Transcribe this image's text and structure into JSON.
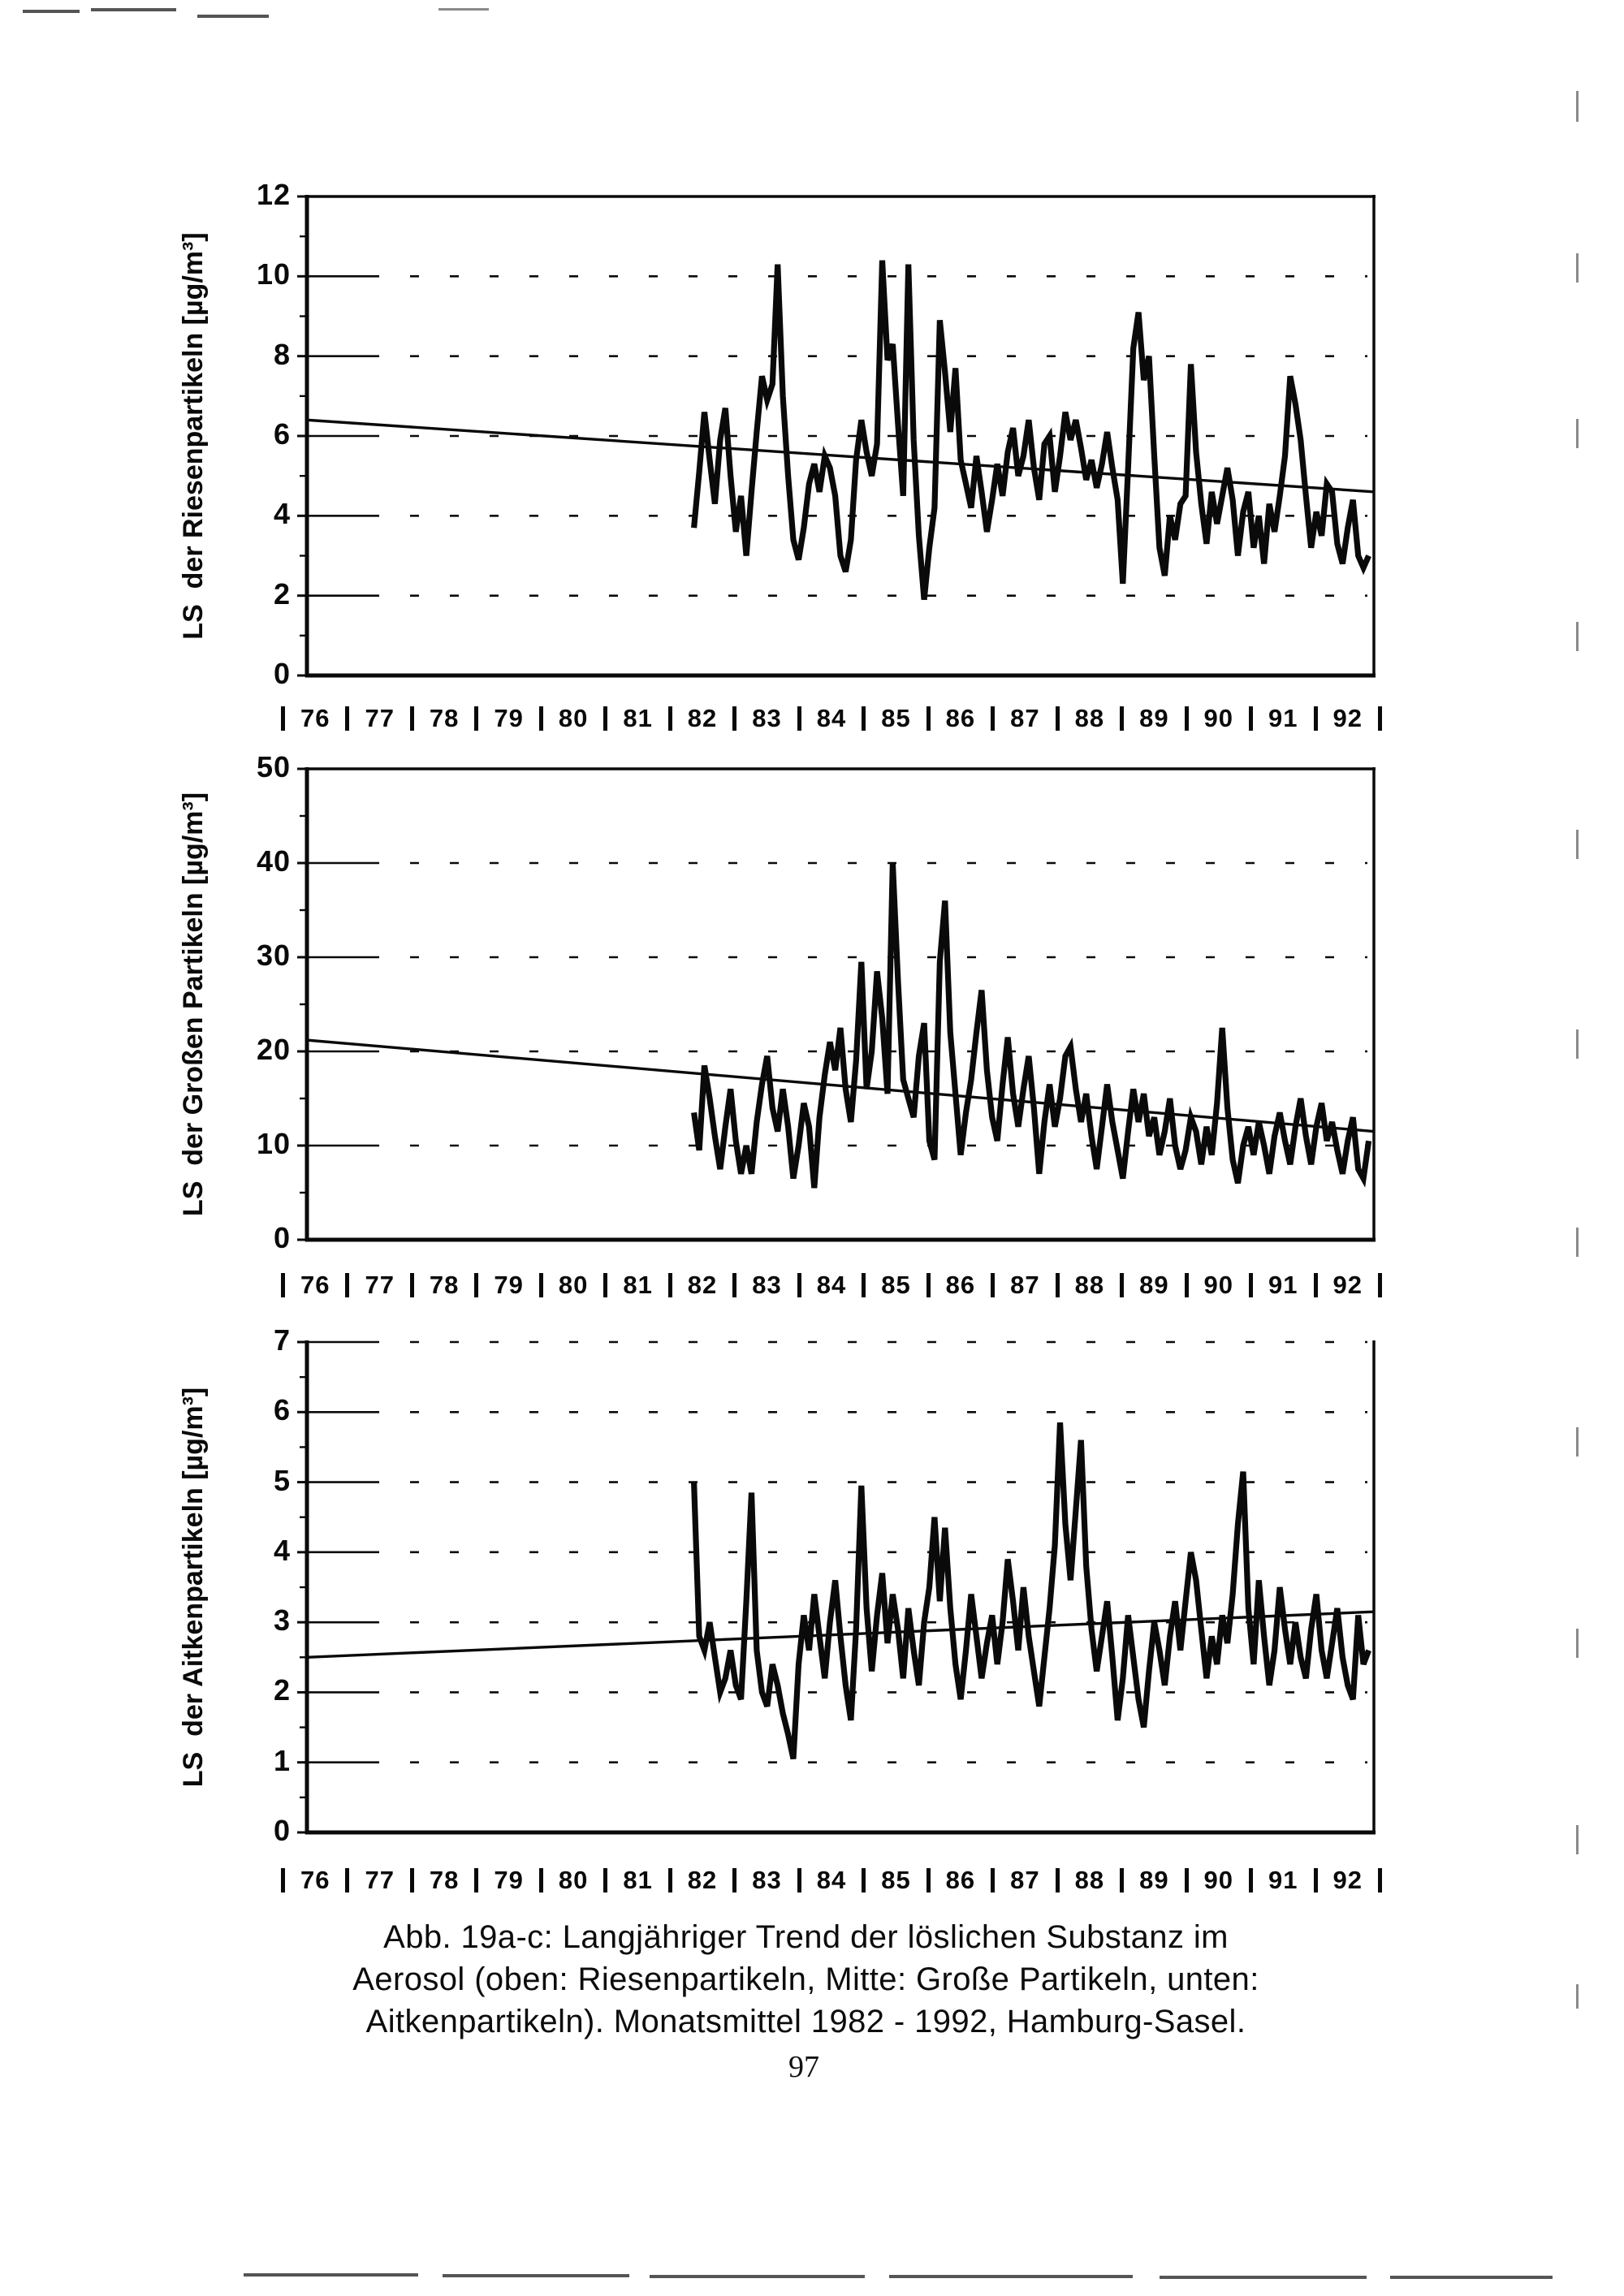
{
  "page": {
    "number": "97",
    "ink_color": "#0a0a0a",
    "background": "#ffffff"
  },
  "caption": {
    "line1": "Abb. 19a-c: Langjähriger Trend der löslichen Substanz im",
    "line2": "Aerosol (oben: Riesenpartikeln, Mitte: Große Partikeln, unten:",
    "line3": "Aitkenpartikeln). Monatsmittel 1982 - 1992, Hamburg-Sasel."
  },
  "x_axis_years": [
    "76",
    "77",
    "78",
    "79",
    "80",
    "81",
    "82",
    "83",
    "84",
    "85",
    "86",
    "87",
    "88",
    "89",
    "90",
    "91",
    "92"
  ],
  "chart_data": [
    {
      "type": "line",
      "position": "top",
      "ylabel": "LS  der Riesenpartikeln [µg/m³]",
      "ylim": [
        0,
        12
      ],
      "ytick_step": 2,
      "minor_tick_step": 1,
      "x_range": [
        1976,
        1993
      ],
      "grid": "dashed-horizontal",
      "has_top_border": true,
      "series": [
        {
          "name": "Monatsmittel",
          "start_year": 1982.1667,
          "step_years": 0.08333,
          "values": [
            3.7,
            5.1,
            6.6,
            5.4,
            4.3,
            5.9,
            6.7,
            5.0,
            3.6,
            4.5,
            3.0,
            4.6,
            6.1,
            7.5,
            6.9,
            7.3,
            10.3,
            7.0,
            5.0,
            3.4,
            2.9,
            3.7,
            4.8,
            5.3,
            4.6,
            5.5,
            5.2,
            4.5,
            3.0,
            2.6,
            3.4,
            5.4,
            6.4,
            5.6,
            5.0,
            5.8,
            10.4,
            7.9,
            8.3,
            6.3,
            4.5,
            10.3,
            5.9,
            3.5,
            1.9,
            3.2,
            4.2,
            8.9,
            7.6,
            6.1,
            7.7,
            5.4,
            4.8,
            4.2,
            5.5,
            4.6,
            3.6,
            4.4,
            5.3,
            4.5,
            5.6,
            6.2,
            5.0,
            5.5,
            6.4,
            5.2,
            4.4,
            5.8,
            6.0,
            4.6,
            5.5,
            6.6,
            5.9,
            6.4,
            5.7,
            4.9,
            5.4,
            4.7,
            5.3,
            6.1,
            5.2,
            4.4,
            2.3,
            5.2,
            8.2,
            9.1,
            7.4,
            8.0,
            5.5,
            3.2,
            2.5,
            4.0,
            3.4,
            4.3,
            4.5,
            7.8,
            5.6,
            4.3,
            3.3,
            4.6,
            3.8,
            4.5,
            5.2,
            4.4,
            3.0,
            4.1,
            4.6,
            3.2,
            4.0,
            2.8,
            4.3,
            3.6,
            4.5,
            5.5,
            7.5,
            6.8,
            5.9,
            4.5,
            3.2,
            4.1,
            3.5,
            4.8,
            4.6,
            3.3,
            2.8,
            3.7,
            4.4,
            3.0,
            2.7,
            3.0
          ]
        },
        {
          "name": "Trend",
          "x": [
            1976,
            1993
          ],
          "y": [
            6.4,
            4.6
          ]
        }
      ]
    },
    {
      "type": "line",
      "position": "middle",
      "ylabel": "LS  der Großen Partikeln [µg/m³]",
      "ylim": [
        0,
        50
      ],
      "ytick_step": 10,
      "minor_tick_step": 5,
      "x_range": [
        1976,
        1993
      ],
      "grid": "dashed-horizontal",
      "has_top_border": true,
      "series": [
        {
          "name": "Monatsmittel",
          "start_year": 1982.1667,
          "step_years": 0.08333,
          "values": [
            13.5,
            9.5,
            18.5,
            15.0,
            11.0,
            7.5,
            12.0,
            16.0,
            10.5,
            7.0,
            10.0,
            7.0,
            12.5,
            16.5,
            19.5,
            14.0,
            11.5,
            16.0,
            12.0,
            6.5,
            10.0,
            14.5,
            12.0,
            5.5,
            13.0,
            17.5,
            21.0,
            18.0,
            22.5,
            16.0,
            12.5,
            19.0,
            29.5,
            16.0,
            20.0,
            28.5,
            23.5,
            15.5,
            40.0,
            27.5,
            17.0,
            15.0,
            13.0,
            19.5,
            23.0,
            10.5,
            8.5,
            29.5,
            36.0,
            22.0,
            15.5,
            9.0,
            13.5,
            17.0,
            22.0,
            26.5,
            18.0,
            13.0,
            10.5,
            16.5,
            21.5,
            15.5,
            12.0,
            16.0,
            19.5,
            14.0,
            7.0,
            12.5,
            16.5,
            12.0,
            15.0,
            19.5,
            20.5,
            16.0,
            12.5,
            15.5,
            11.0,
            7.5,
            12.0,
            16.5,
            12.5,
            9.5,
            6.5,
            11.5,
            16.0,
            12.5,
            15.5,
            11.0,
            13.0,
            9.0,
            11.5,
            15.0,
            10.0,
            7.5,
            9.5,
            13.0,
            11.5,
            8.0,
            12.0,
            9.0,
            14.5,
            22.5,
            14.0,
            8.5,
            6.0,
            10.0,
            12.0,
            9.0,
            12.5,
            10.0,
            7.0,
            11.0,
            13.5,
            10.5,
            8.0,
            12.0,
            15.0,
            11.0,
            8.0,
            12.0,
            14.5,
            10.5,
            12.5,
            9.5,
            7.0,
            10.5,
            13.0,
            7.5,
            6.5,
            10.5
          ]
        },
        {
          "name": "Trend",
          "x": [
            1976,
            1993
          ],
          "y": [
            21.2,
            11.5
          ]
        }
      ]
    },
    {
      "type": "line",
      "position": "bottom",
      "ylabel": "LS  der Aitkenpartikeln [µg/m³]",
      "ylim": [
        0,
        7
      ],
      "ytick_step": 1,
      "minor_tick_step": 0.5,
      "x_range": [
        1976,
        1993
      ],
      "grid": "dashed-horizontal",
      "has_top_border": false,
      "series": [
        {
          "name": "Monatsmittel",
          "start_year": 1982.1667,
          "step_years": 0.08333,
          "values": [
            5.0,
            2.8,
            2.6,
            3.0,
            2.5,
            2.0,
            2.2,
            2.6,
            2.1,
            1.9,
            3.3,
            4.85,
            2.6,
            2.0,
            1.8,
            2.4,
            2.1,
            1.7,
            1.4,
            1.05,
            2.4,
            3.1,
            2.6,
            3.4,
            2.8,
            2.2,
            3.0,
            3.6,
            2.8,
            2.1,
            1.6,
            2.9,
            4.95,
            3.2,
            2.3,
            3.1,
            3.7,
            2.7,
            3.4,
            2.9,
            2.2,
            3.2,
            2.6,
            2.1,
            3.0,
            3.5,
            4.5,
            3.3,
            4.35,
            3.2,
            2.4,
            1.9,
            2.6,
            3.4,
            2.8,
            2.2,
            2.7,
            3.1,
            2.4,
            3.0,
            3.9,
            3.3,
            2.6,
            3.5,
            2.8,
            2.3,
            1.8,
            2.5,
            3.2,
            4.1,
            5.85,
            4.4,
            3.6,
            4.6,
            5.6,
            3.8,
            2.9,
            2.3,
            2.8,
            3.3,
            2.5,
            1.6,
            2.2,
            3.1,
            2.5,
            1.9,
            1.5,
            2.3,
            3.0,
            2.6,
            2.1,
            2.8,
            3.3,
            2.6,
            3.3,
            4.0,
            3.6,
            2.9,
            2.2,
            2.8,
            2.4,
            3.1,
            2.7,
            3.4,
            4.4,
            5.15,
            3.2,
            2.4,
            3.6,
            2.8,
            2.1,
            2.6,
            3.5,
            2.9,
            2.4,
            3.0,
            2.5,
            2.2,
            2.9,
            3.4,
            2.6,
            2.2,
            2.7,
            3.2,
            2.5,
            2.1,
            1.9,
            3.1,
            2.4,
            2.6
          ]
        },
        {
          "name": "Trend",
          "x": [
            1976,
            1993
          ],
          "y": [
            2.5,
            3.15
          ]
        }
      ]
    }
  ]
}
